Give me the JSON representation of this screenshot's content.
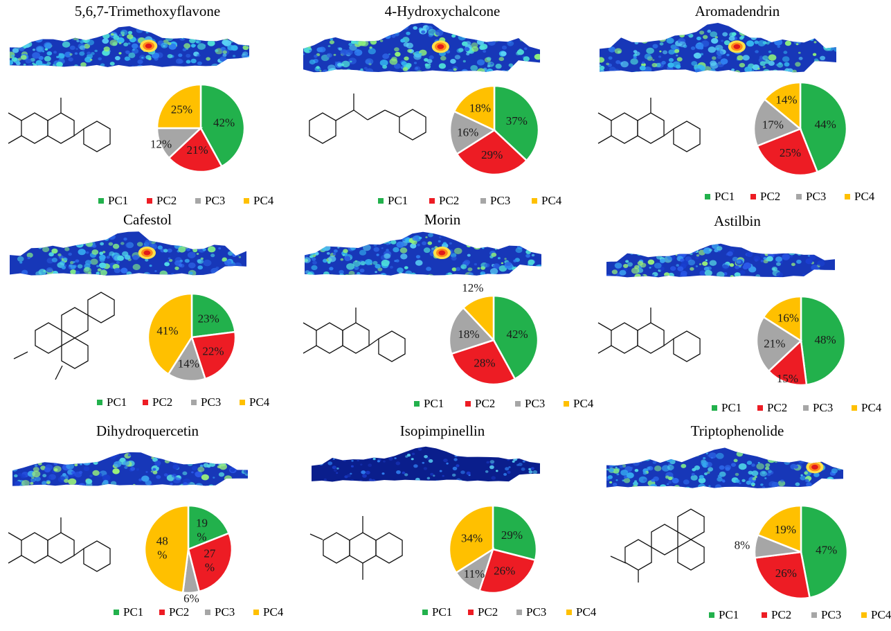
{
  "colors": {
    "PC1": "#22b14c",
    "PC2": "#ed1c24",
    "PC3": "#a6a6a6",
    "PC4": "#ffc000"
  },
  "legend_labels": [
    "PC1",
    "PC2",
    "PC3",
    "PC4"
  ],
  "chart_data": [
    {
      "type": "pie",
      "title": "5,6,7-Trimethoxyflavone",
      "categories": [
        "PC1",
        "PC2",
        "PC3",
        "PC4"
      ],
      "values": [
        42,
        21,
        12,
        25
      ],
      "labels": [
        "42%",
        "21%",
        "12%",
        "25%"
      ],
      "heat": "high"
    },
    {
      "type": "pie",
      "title": "4-Hydroxychalcone",
      "categories": [
        "PC1",
        "PC2",
        "PC3",
        "PC4"
      ],
      "values": [
        37,
        29,
        16,
        18
      ],
      "labels": [
        "37%",
        "29%",
        "16%",
        "18%"
      ],
      "heat": "high"
    },
    {
      "type": "pie",
      "title": "Aromadendrin",
      "categories": [
        "PC1",
        "PC2",
        "PC3",
        "PC4"
      ],
      "values": [
        44,
        25,
        17,
        14
      ],
      "labels": [
        "44%",
        "25%",
        "17%",
        "14%"
      ],
      "heat": "high"
    },
    {
      "type": "pie",
      "title": "Cafestol",
      "categories": [
        "PC1",
        "PC2",
        "PC3",
        "PC4"
      ],
      "values": [
        23,
        22,
        14,
        41
      ],
      "labels": [
        "23%",
        "22%",
        "14%",
        "41%"
      ],
      "heat": "mid"
    },
    {
      "type": "pie",
      "title": "Morin",
      "categories": [
        "PC1",
        "PC2",
        "PC3",
        "PC4"
      ],
      "values": [
        42,
        28,
        18,
        12
      ],
      "labels": [
        "42%",
        "28%",
        "18%",
        "12%"
      ],
      "heat": "high"
    },
    {
      "type": "pie",
      "title": "Astilbin",
      "categories": [
        "PC1",
        "PC2",
        "PC3",
        "PC4"
      ],
      "values": [
        48,
        15,
        21,
        16
      ],
      "labels": [
        "48%",
        "15%",
        "21%",
        "16%"
      ],
      "heat": "low"
    },
    {
      "type": "pie",
      "title": "Dihydroquercetin",
      "categories": [
        "PC1",
        "PC2",
        "PC3",
        "PC4"
      ],
      "values": [
        19,
        27,
        6,
        48
      ],
      "labels": [
        "19\n%",
        "27\n%",
        "6%",
        "48\n%"
      ],
      "heat": "low"
    },
    {
      "type": "pie",
      "title": "Isopimpinellin",
      "categories": [
        "PC1",
        "PC2",
        "PC3",
        "PC4"
      ],
      "values": [
        29,
        26,
        11,
        34
      ],
      "labels": [
        "29%",
        "26%",
        "11%",
        "34%"
      ],
      "heat": "verylow"
    },
    {
      "type": "pie",
      "title": "Triptophenolide",
      "categories": [
        "PC1",
        "PC2",
        "PC3",
        "PC4"
      ],
      "values": [
        47,
        26,
        8,
        19
      ],
      "labels": [
        "47%",
        "26%",
        "8%",
        "19%"
      ],
      "heat": "mid"
    }
  ]
}
